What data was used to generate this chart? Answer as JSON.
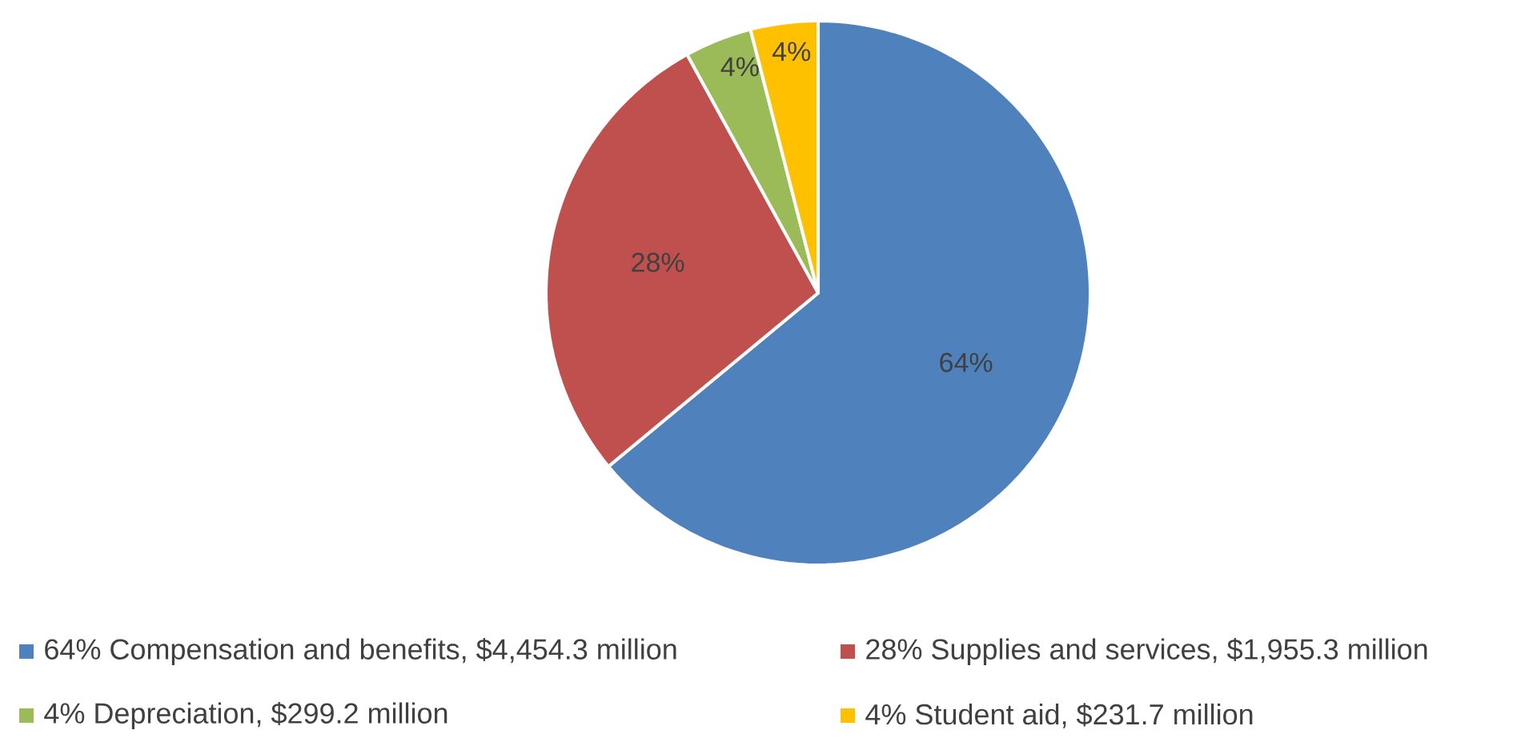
{
  "chart_data": {
    "type": "pie",
    "categories": [
      "64% Compensation and benefits, $4,454.3 million",
      "28% Supplies and services, $1,955.3 million",
      "4% Depreciation, $299.2 million",
      "4% Student aid, $231.7 million"
    ],
    "values": [
      64,
      28,
      4,
      4
    ],
    "value_labels": [
      "64%",
      "28%",
      "4%",
      "4%"
    ],
    "colors": [
      "#4f81bd",
      "#c0504d",
      "#9bbb59",
      "#ffc000"
    ],
    "legend": "bottom"
  }
}
